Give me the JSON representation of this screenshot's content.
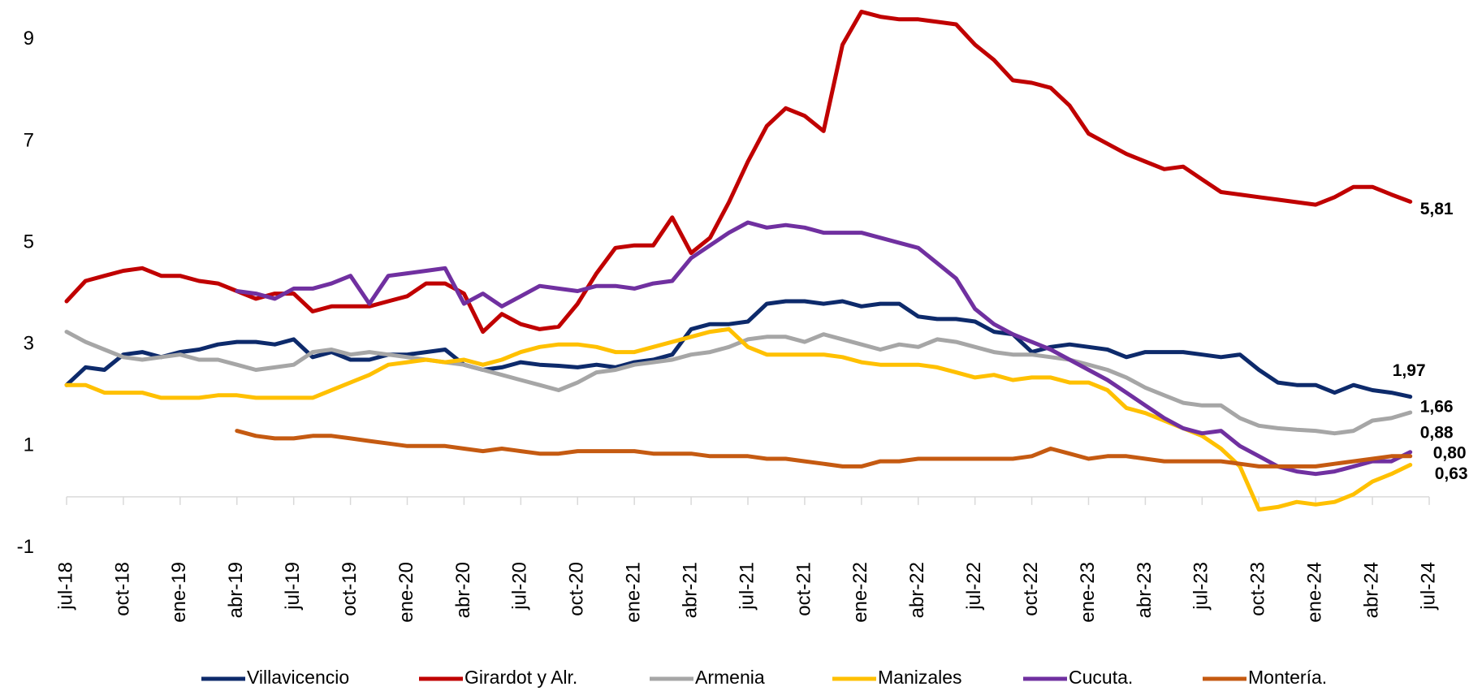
{
  "chart_data": {
    "type": "line",
    "categories": [
      "jul-18",
      null,
      null,
      "oct-18",
      null,
      null,
      "ene-19",
      null,
      null,
      "abr-19",
      null,
      null,
      "jul-19",
      null,
      null,
      "oct-19",
      null,
      null,
      "ene-20",
      null,
      null,
      "abr-20",
      null,
      null,
      "jul-20",
      null,
      null,
      "oct-20",
      null,
      null,
      "ene-21",
      null,
      null,
      "abr-21",
      null,
      null,
      "jul-21",
      null,
      null,
      "oct-21",
      null,
      null,
      "ene-22",
      null,
      null,
      "abr-22",
      null,
      null,
      "jul-22",
      null,
      null,
      "oct-22",
      null,
      null,
      "ene-23",
      null,
      null,
      "abr-23",
      null,
      null,
      "jul-23",
      null,
      null,
      "oct-23",
      null,
      null,
      "ene-24",
      null,
      null,
      "abr-24",
      null,
      null,
      "jul-24"
    ],
    "ylim": [
      -1.6,
      9.78
    ],
    "yticks": [
      -1,
      1,
      3,
      5,
      7,
      9
    ],
    "legend": "bottom",
    "series": [
      {
        "name": "Villavicencio",
        "color": "#0d2a6b",
        "label_color": "#0d2a6b",
        "values": [
          2.2,
          2.55,
          2.5,
          2.8,
          2.85,
          2.75,
          2.85,
          2.9,
          3.0,
          3.05,
          3.05,
          3.0,
          3.1,
          2.75,
          2.85,
          2.7,
          2.7,
          2.8,
          2.8,
          2.85,
          2.9,
          2.6,
          2.5,
          2.55,
          2.65,
          2.6,
          2.58,
          2.55,
          2.6,
          2.55,
          2.65,
          2.7,
          2.8,
          3.3,
          3.4,
          3.4,
          3.45,
          3.8,
          3.85,
          3.85,
          3.8,
          3.85,
          3.75,
          3.8,
          3.8,
          3.55,
          3.5,
          3.5,
          3.45,
          3.25,
          3.2,
          2.85,
          2.95,
          3.0,
          2.95,
          2.9,
          2.75,
          2.85,
          2.85,
          2.85,
          2.8,
          2.75,
          2.8,
          2.5,
          2.25,
          2.2,
          2.2,
          2.05,
          2.2,
          2.1,
          2.05,
          1.97,
          null
        ],
        "value_labels": [
          null,
          null,
          null,
          null,
          null,
          null,
          null,
          null,
          null,
          null,
          null,
          null,
          null,
          null,
          null,
          null,
          null,
          null,
          null,
          null,
          null,
          null,
          null,
          null,
          null,
          null,
          null,
          null,
          null,
          null,
          null,
          null,
          null,
          null,
          null,
          null,
          null,
          null,
          null,
          null,
          null,
          null,
          null,
          null,
          null,
          null,
          null,
          null,
          null,
          null,
          null,
          null,
          null,
          null,
          null,
          null,
          null,
          null,
          null,
          null,
          null,
          null,
          null,
          null,
          null,
          null,
          null,
          null,
          null,
          null,
          null,
          "1,97",
          null
        ]
      },
      {
        "name": "Girardot y Alr.",
        "color": "#c00000",
        "label_color": "#c00000",
        "values": [
          3.85,
          4.25,
          4.35,
          4.45,
          4.5,
          4.35,
          4.35,
          4.25,
          4.2,
          4.05,
          3.9,
          4.0,
          4.0,
          3.65,
          3.75,
          3.75,
          3.75,
          3.85,
          3.95,
          4.2,
          4.2,
          4.0,
          3.25,
          3.6,
          3.4,
          3.3,
          3.35,
          3.8,
          4.4,
          4.9,
          4.95,
          4.95,
          5.5,
          4.8,
          5.1,
          5.8,
          6.6,
          7.3,
          7.65,
          7.5,
          7.2,
          8.9,
          9.55,
          9.45,
          9.4,
          9.4,
          9.35,
          9.3,
          8.9,
          8.6,
          8.2,
          8.15,
          8.05,
          7.7,
          7.15,
          6.95,
          6.75,
          6.6,
          6.45,
          6.5,
          6.25,
          6.0,
          5.95,
          5.9,
          5.85,
          5.8,
          5.75,
          5.9,
          6.1,
          6.1,
          5.95,
          5.81,
          null
        ],
        "value_labels": [
          null,
          null,
          null,
          null,
          null,
          null,
          null,
          null,
          null,
          null,
          null,
          null,
          null,
          null,
          null,
          null,
          null,
          null,
          null,
          null,
          null,
          null,
          null,
          null,
          null,
          null,
          null,
          null,
          null,
          null,
          null,
          null,
          null,
          null,
          null,
          null,
          null,
          null,
          null,
          null,
          null,
          null,
          null,
          null,
          null,
          null,
          null,
          null,
          null,
          null,
          null,
          null,
          null,
          null,
          null,
          null,
          null,
          null,
          null,
          null,
          null,
          null,
          null,
          null,
          null,
          null,
          null,
          null,
          null,
          null,
          null,
          "5,81",
          null
        ]
      },
      {
        "name": "Armenia",
        "color": "#a6a6a6",
        "label_color": "#a6a6a6",
        "values": [
          3.25,
          3.05,
          2.9,
          2.75,
          2.7,
          2.75,
          2.8,
          2.7,
          2.7,
          2.6,
          2.5,
          2.55,
          2.6,
          2.85,
          2.9,
          2.8,
          2.85,
          2.8,
          2.75,
          2.7,
          2.65,
          2.6,
          2.5,
          2.4,
          2.3,
          2.2,
          2.1,
          2.25,
          2.45,
          2.5,
          2.6,
          2.65,
          2.7,
          2.8,
          2.85,
          2.95,
          3.1,
          3.15,
          3.15,
          3.05,
          3.2,
          3.1,
          3.0,
          2.9,
          3.0,
          2.95,
          3.1,
          3.05,
          2.95,
          2.85,
          2.8,
          2.8,
          2.75,
          2.7,
          2.6,
          2.5,
          2.35,
          2.15,
          2.0,
          1.85,
          1.8,
          1.8,
          1.55,
          1.4,
          1.35,
          1.32,
          1.3,
          1.25,
          1.3,
          1.5,
          1.55,
          1.66,
          null
        ],
        "value_labels": [
          null,
          null,
          null,
          null,
          null,
          null,
          null,
          null,
          null,
          null,
          null,
          null,
          null,
          null,
          null,
          null,
          null,
          null,
          null,
          null,
          null,
          null,
          null,
          null,
          null,
          null,
          null,
          null,
          null,
          null,
          null,
          null,
          null,
          null,
          null,
          null,
          null,
          null,
          null,
          null,
          null,
          null,
          null,
          null,
          null,
          null,
          null,
          null,
          null,
          null,
          null,
          null,
          null,
          null,
          null,
          null,
          null,
          null,
          null,
          null,
          null,
          null,
          null,
          null,
          null,
          null,
          null,
          null,
          null,
          null,
          null,
          "1,66",
          null
        ]
      },
      {
        "name": "Manizales",
        "color": "#ffc000",
        "label_color": "#d4a000",
        "values": [
          2.2,
          2.2,
          2.05,
          2.05,
          2.05,
          1.95,
          1.95,
          1.95,
          2.0,
          2.0,
          1.95,
          1.95,
          1.95,
          1.95,
          2.1,
          2.25,
          2.4,
          2.6,
          2.65,
          2.7,
          2.65,
          2.7,
          2.6,
          2.7,
          2.85,
          2.95,
          3.0,
          3.0,
          2.95,
          2.85,
          2.85,
          2.95,
          3.05,
          3.15,
          3.25,
          3.3,
          2.95,
          2.8,
          2.8,
          2.8,
          2.8,
          2.75,
          2.65,
          2.6,
          2.6,
          2.6,
          2.55,
          2.45,
          2.35,
          2.4,
          2.3,
          2.35,
          2.35,
          2.25,
          2.25,
          2.1,
          1.75,
          1.65,
          1.5,
          1.35,
          1.2,
          0.95,
          0.6,
          -0.25,
          -0.2,
          -0.1,
          -0.15,
          -0.1,
          0.05,
          0.3,
          0.45,
          0.63,
          null
        ],
        "value_labels": [
          null,
          null,
          null,
          null,
          null,
          null,
          null,
          null,
          null,
          null,
          null,
          null,
          null,
          null,
          null,
          null,
          null,
          null,
          null,
          null,
          null,
          null,
          null,
          null,
          null,
          null,
          null,
          null,
          null,
          null,
          null,
          null,
          null,
          null,
          null,
          null,
          null,
          null,
          null,
          null,
          null,
          null,
          null,
          null,
          null,
          null,
          null,
          null,
          null,
          null,
          null,
          null,
          null,
          null,
          null,
          null,
          null,
          null,
          null,
          null,
          null,
          null,
          null,
          null,
          null,
          null,
          null,
          null,
          null,
          null,
          null,
          "0,63",
          null
        ]
      },
      {
        "name": "Cucuta.",
        "color": "#7030a0",
        "label_color": "#7030a0",
        "values": [
          null,
          null,
          null,
          null,
          null,
          null,
          null,
          null,
          null,
          4.05,
          4.0,
          3.9,
          4.1,
          4.1,
          4.2,
          4.35,
          3.8,
          4.35,
          4.4,
          4.45,
          4.5,
          3.8,
          4.0,
          3.75,
          3.95,
          4.15,
          4.1,
          4.05,
          4.15,
          4.15,
          4.1,
          4.2,
          4.25,
          4.7,
          4.95,
          5.2,
          5.4,
          5.3,
          5.35,
          5.3,
          5.2,
          5.2,
          5.2,
          5.1,
          5.0,
          4.9,
          4.6,
          4.3,
          3.7,
          3.4,
          3.2,
          3.05,
          2.9,
          2.7,
          2.5,
          2.3,
          2.05,
          1.8,
          1.55,
          1.35,
          1.25,
          1.3,
          1.0,
          0.8,
          0.6,
          0.5,
          0.45,
          0.5,
          0.6,
          0.7,
          0.7,
          0.88,
          null
        ],
        "value_labels": [
          null,
          null,
          null,
          null,
          null,
          null,
          null,
          null,
          null,
          null,
          null,
          null,
          null,
          null,
          null,
          null,
          null,
          null,
          null,
          null,
          null,
          null,
          null,
          null,
          null,
          null,
          null,
          null,
          null,
          null,
          null,
          null,
          null,
          null,
          null,
          null,
          null,
          null,
          null,
          null,
          null,
          null,
          null,
          null,
          null,
          null,
          null,
          null,
          null,
          null,
          null,
          null,
          null,
          null,
          null,
          null,
          null,
          null,
          null,
          null,
          null,
          null,
          null,
          null,
          null,
          null,
          null,
          null,
          null,
          null,
          null,
          "0,88",
          null
        ]
      },
      {
        "name": "Montería.",
        "color": "#c55a11",
        "label_color": "#843c0c",
        "values": [
          null,
          null,
          null,
          null,
          null,
          null,
          null,
          null,
          null,
          1.3,
          1.2,
          1.15,
          1.15,
          1.2,
          1.2,
          1.15,
          1.1,
          1.05,
          1.0,
          1.0,
          1.0,
          0.95,
          0.9,
          0.95,
          0.9,
          0.85,
          0.85,
          0.9,
          0.9,
          0.9,
          0.9,
          0.85,
          0.85,
          0.85,
          0.8,
          0.8,
          0.8,
          0.75,
          0.75,
          0.7,
          0.65,
          0.6,
          0.6,
          0.7,
          0.7,
          0.75,
          0.75,
          0.75,
          0.75,
          0.75,
          0.75,
          0.8,
          0.95,
          0.85,
          0.75,
          0.8,
          0.8,
          0.75,
          0.7,
          0.7,
          0.7,
          0.7,
          0.65,
          0.6,
          0.6,
          0.6,
          0.6,
          0.65,
          0.7,
          0.75,
          0.8,
          0.8,
          null
        ],
        "value_labels": [
          null,
          null,
          null,
          null,
          null,
          null,
          null,
          null,
          null,
          null,
          null,
          null,
          null,
          null,
          null,
          null,
          null,
          null,
          null,
          null,
          null,
          null,
          null,
          null,
          null,
          null,
          null,
          null,
          null,
          null,
          null,
          null,
          null,
          null,
          null,
          null,
          null,
          null,
          null,
          null,
          null,
          null,
          null,
          null,
          null,
          null,
          null,
          null,
          null,
          null,
          null,
          null,
          null,
          null,
          null,
          null,
          null,
          null,
          null,
          null,
          null,
          null,
          null,
          null,
          null,
          null,
          null,
          null,
          null,
          null,
          null,
          "0,80",
          null
        ]
      }
    ]
  }
}
